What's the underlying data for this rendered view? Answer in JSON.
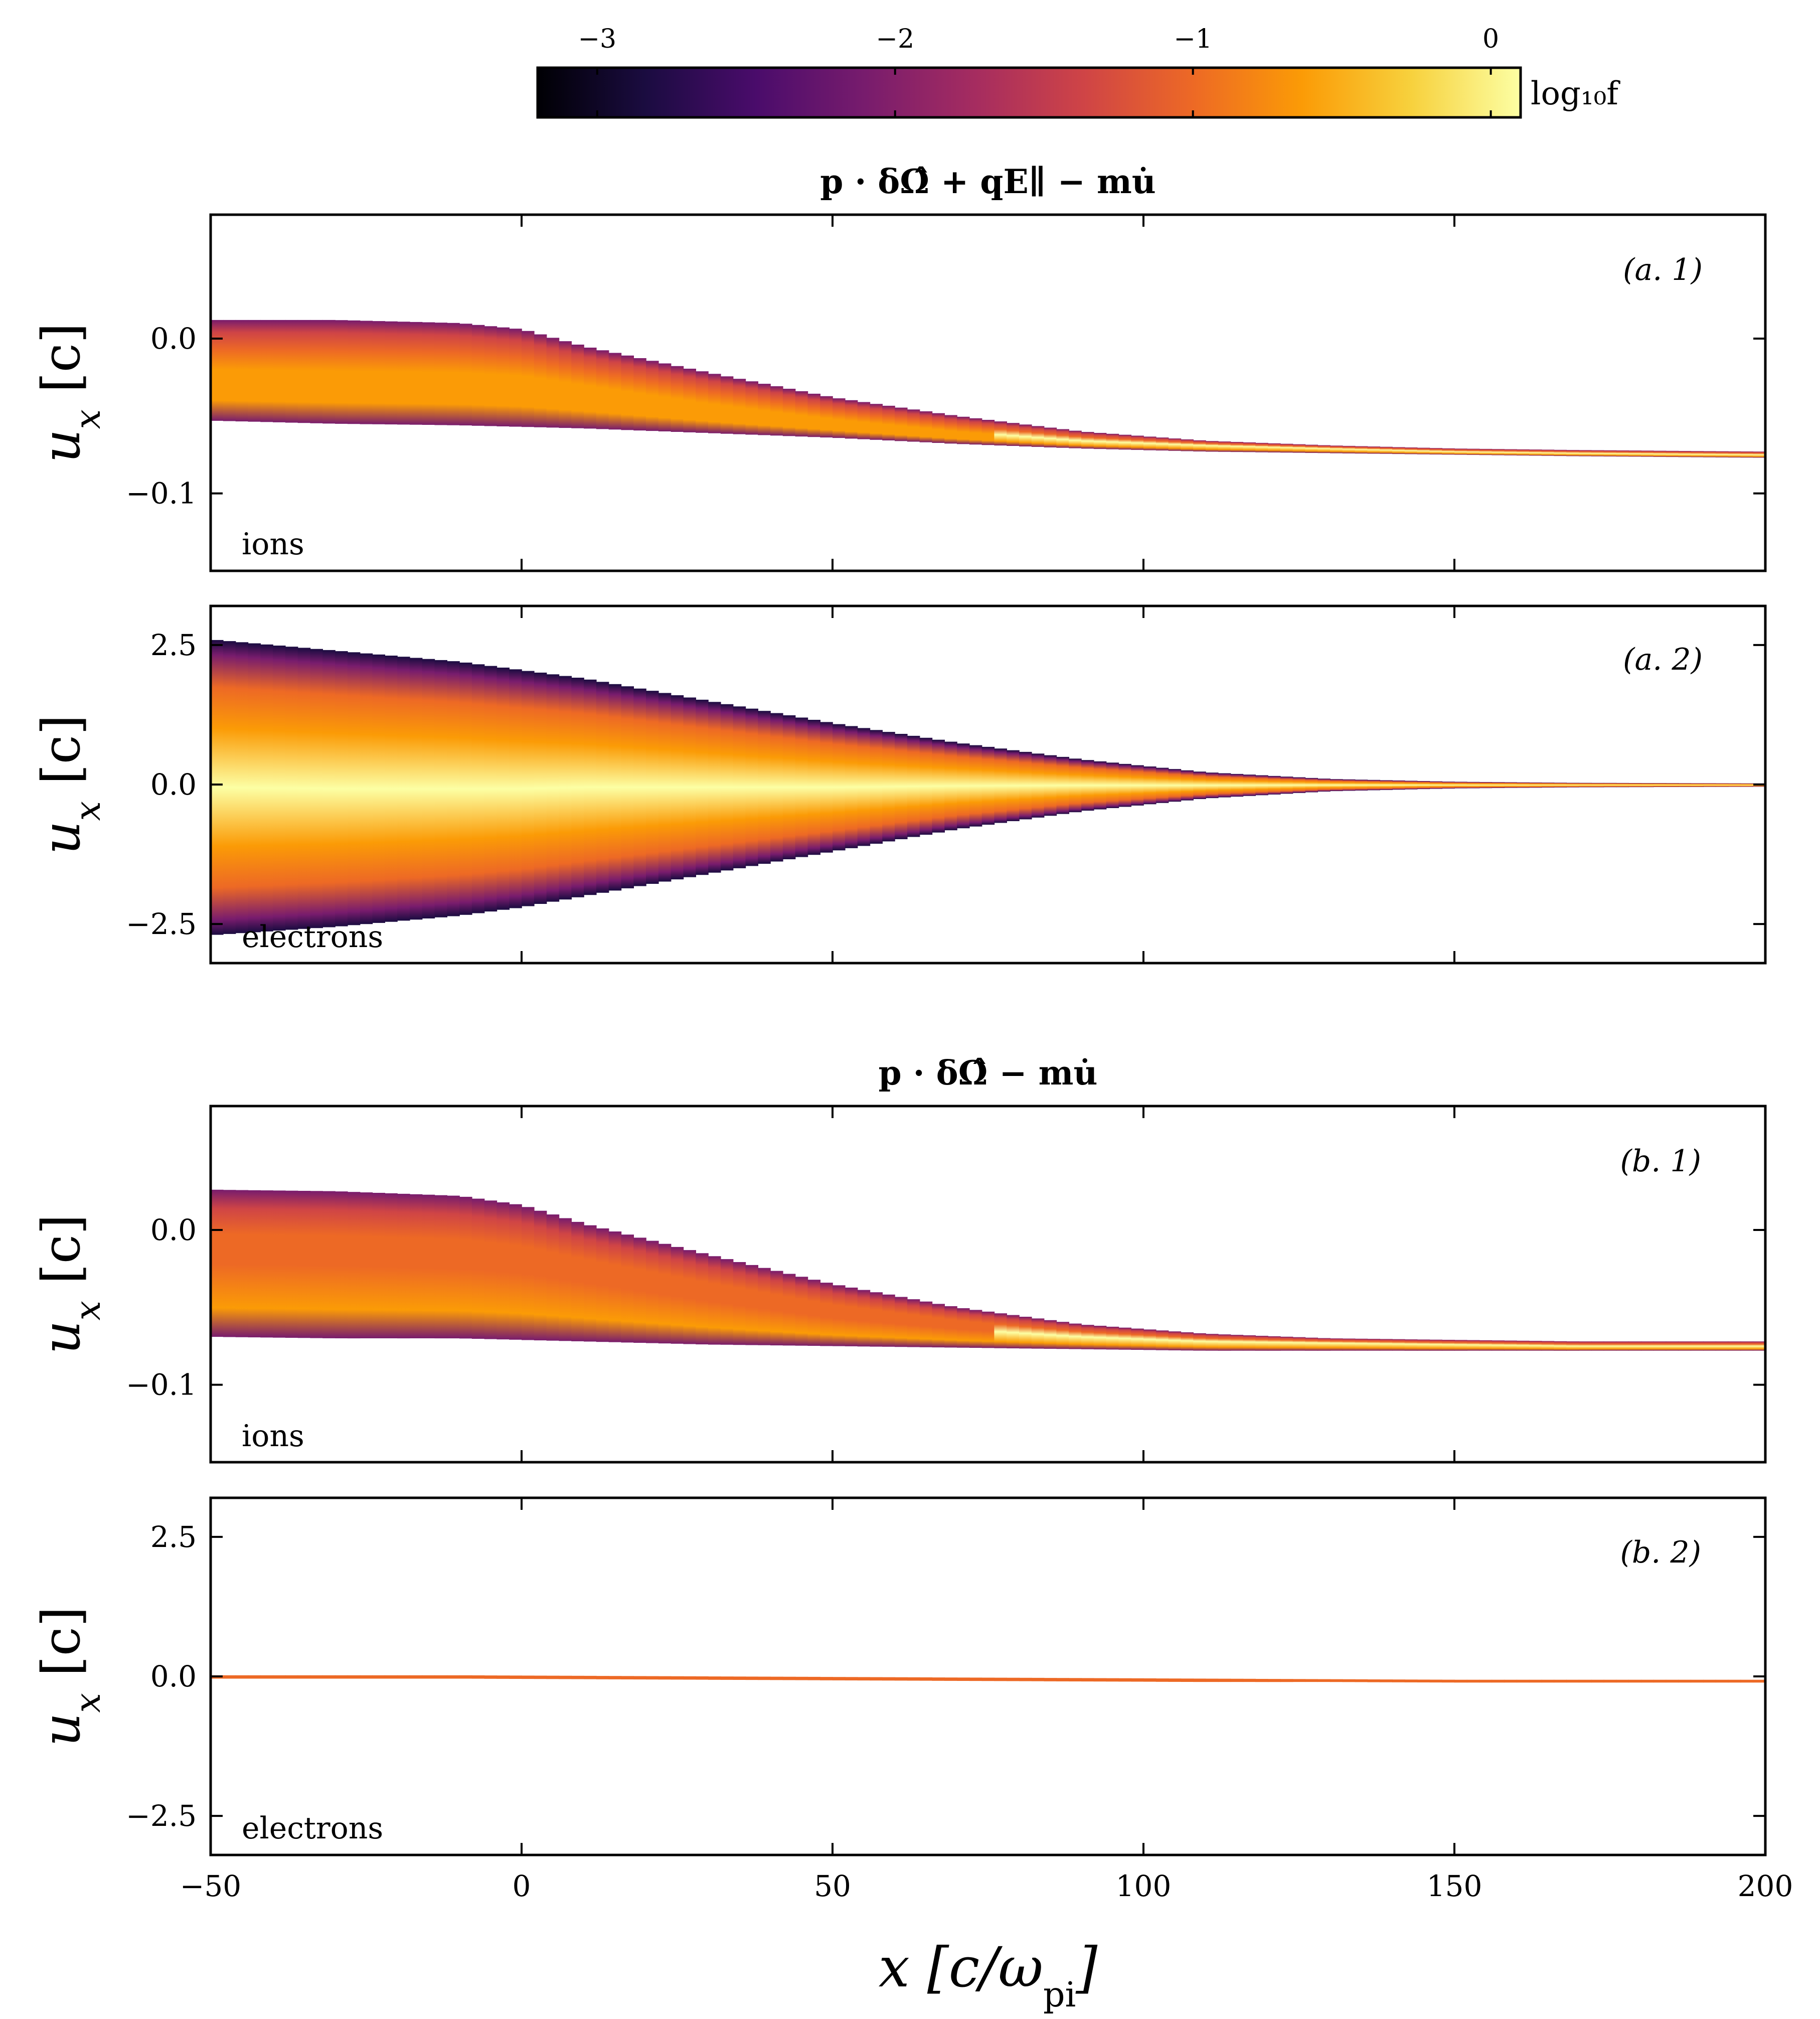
{
  "colors": {
    "inferno": [
      "#000004",
      "#1b0c41",
      "#4a0c6b",
      "#781c6d",
      "#a52c60",
      "#cf4446",
      "#ed6925",
      "#fb9b06",
      "#f7d13d",
      "#fcffa4"
    ],
    "axis": "#000000",
    "background": "#ffffff"
  },
  "chart_data": {
    "type": "heatmap",
    "description_free": true,
    "colorbar": {
      "label": "log₁₀f",
      "range": [
        -3.2,
        0.1
      ],
      "ticks": [
        -3,
        -2,
        -1,
        0
      ],
      "tick_labels": [
        "−3",
        "−2",
        "−1",
        "0"
      ]
    },
    "x_axis": {
      "label": "x [c/ω",
      "label_sub": "pi",
      "label_end": "]",
      "range": [
        -50,
        200
      ],
      "ticks": [
        -50,
        0,
        50,
        100,
        150,
        200
      ],
      "tick_labels": [
        "−50",
        "0",
        "50",
        "100",
        "150",
        "200"
      ]
    },
    "groups": [
      {
        "title": "p · δΩ̂ + qE∥ − mu̇",
        "panels": [
          {
            "id": "a1",
            "tag": "(a. 1)",
            "species": "ions",
            "ylabel": "u",
            "ylabel_sub": "x",
            "ylabel_unit": " [c]",
            "ylim": [
              -0.15,
              0.08
            ],
            "yticks": [
              0.0,
              -0.1
            ],
            "ytick_labels": [
              "0.0",
              "−0.1"
            ],
            "x": [
              -50,
              -30,
              -10,
              0,
              10,
              30,
              50,
              70,
              90,
              110,
              130,
              150,
              170,
              200
            ],
            "upper": [
              0.012,
              0.012,
              0.01,
              0.006,
              -0.005,
              -0.022,
              -0.038,
              -0.05,
              -0.06,
              -0.066,
              -0.069,
              -0.071,
              -0.072,
              -0.073
            ],
            "lower": [
              -0.053,
              -0.055,
              -0.056,
              -0.057,
              -0.058,
              -0.061,
              -0.064,
              -0.068,
              -0.071,
              -0.073,
              -0.074,
              -0.075,
              -0.076,
              -0.077
            ],
            "core": [
              -0.02,
              -0.021,
              -0.022,
              -0.024,
              -0.03,
              -0.042,
              -0.052,
              -0.06,
              -0.066,
              -0.069,
              -0.071,
              -0.073,
              -0.074,
              -0.075
            ]
          },
          {
            "id": "a2",
            "tag": "(a. 2)",
            "species": "electrons",
            "ylabel": "u",
            "ylabel_sub": "x",
            "ylabel_unit": " [c]",
            "ylim": [
              -3.2,
              3.2
            ],
            "yticks": [
              2.5,
              0.0,
              -2.5
            ],
            "ytick_labels": [
              "2.5",
              "0.0",
              "−2.5"
            ],
            "x": [
              -50,
              -30,
              -10,
              0,
              10,
              30,
              50,
              70,
              90,
              110,
              130,
              150,
              170,
              200
            ],
            "upper": [
              2.6,
              2.4,
              2.2,
              2.05,
              1.9,
              1.5,
              1.1,
              0.75,
              0.45,
              0.22,
              0.1,
              0.05,
              0.03,
              0.02
            ],
            "lower": [
              -2.7,
              -2.55,
              -2.35,
              -2.2,
              -2.0,
              -1.6,
              -1.2,
              -0.8,
              -0.48,
              -0.25,
              -0.12,
              -0.07,
              -0.05,
              -0.04
            ],
            "core": [
              0.0,
              0.0,
              0.0,
              0.0,
              0.0,
              0.0,
              0.0,
              0.0,
              0.0,
              -0.01,
              -0.01,
              -0.02,
              -0.02,
              -0.02
            ]
          }
        ]
      },
      {
        "title": "p · δΩ̂ − mu̇",
        "panels": [
          {
            "id": "b1",
            "tag": "(b. 1)",
            "species": "ions",
            "ylabel": "u",
            "ylabel_sub": "x",
            "ylabel_unit": " [c]",
            "ylim": [
              -0.15,
              0.08
            ],
            "yticks": [
              0.0,
              -0.1
            ],
            "ytick_labels": [
              "0.0",
              "−0.1"
            ],
            "x": [
              -50,
              -30,
              -10,
              0,
              10,
              30,
              50,
              70,
              90,
              110,
              130,
              150,
              170,
              200
            ],
            "upper": [
              0.026,
              0.025,
              0.022,
              0.016,
              0.004,
              -0.016,
              -0.035,
              -0.05,
              -0.061,
              -0.067,
              -0.07,
              -0.071,
              -0.072,
              -0.072
            ],
            "lower": [
              -0.069,
              -0.07,
              -0.07,
              -0.071,
              -0.072,
              -0.074,
              -0.075,
              -0.076,
              -0.077,
              -0.078,
              -0.078,
              -0.078,
              -0.078,
              -0.078
            ],
            "core": [
              -0.022,
              -0.023,
              -0.025,
              -0.028,
              -0.034,
              -0.046,
              -0.057,
              -0.064,
              -0.069,
              -0.072,
              -0.073,
              -0.074,
              -0.075,
              -0.075
            ]
          },
          {
            "id": "b2",
            "tag": "(b. 2)",
            "species": "electrons",
            "ylabel": "u",
            "ylabel_sub": "x",
            "ylabel_unit": " [c]",
            "ylim": [
              -3.2,
              3.2
            ],
            "yticks": [
              2.5,
              0.0,
              -2.5
            ],
            "ytick_labels": [
              "2.5",
              "0.0",
              "−2.5"
            ],
            "x": [
              -50,
              -30,
              -10,
              0,
              10,
              30,
              50,
              70,
              90,
              110,
              130,
              150,
              170,
              200
            ],
            "upper": [
              0.02,
              0.02,
              0.02,
              0.015,
              0.01,
              0.0,
              -0.01,
              -0.02,
              -0.03,
              -0.04,
              -0.05,
              -0.06,
              -0.06,
              -0.06
            ],
            "lower": [
              -0.04,
              -0.04,
              -0.04,
              -0.045,
              -0.05,
              -0.06,
              -0.07,
              -0.08,
              -0.09,
              -0.1,
              -0.1,
              -0.11,
              -0.11,
              -0.11
            ],
            "core": [
              -0.01,
              -0.01,
              -0.01,
              -0.015,
              -0.02,
              -0.03,
              -0.04,
              -0.05,
              -0.06,
              -0.07,
              -0.075,
              -0.085,
              -0.085,
              -0.085
            ]
          }
        ]
      }
    ]
  }
}
